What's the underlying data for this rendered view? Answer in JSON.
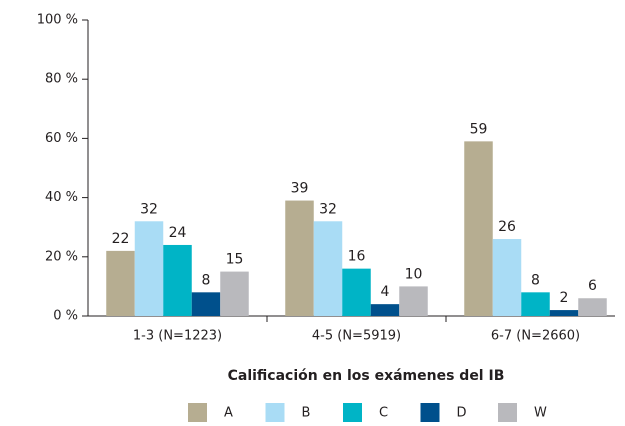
{
  "chart_data": {
    "type": "bar",
    "x_label": "Calificación en los exámenes del IB",
    "categories": [
      "1-3 (N=1223)",
      "4-5 (N=5919)",
      "6-7 (N=2660)"
    ],
    "series": [
      {
        "name": "A",
        "color": "#b6ad91",
        "values": [
          22,
          39,
          59
        ]
      },
      {
        "name": "B",
        "color": "#a9dcf5",
        "values": [
          32,
          32,
          26
        ]
      },
      {
        "name": "C",
        "color": "#00b4c6",
        "values": [
          24,
          16,
          8
        ]
      },
      {
        "name": "D",
        "color": "#00508c",
        "values": [
          8,
          4,
          2
        ]
      },
      {
        "name": "W",
        "color": "#b9b9bd",
        "values": [
          15,
          10,
          6
        ]
      }
    ],
    "ylim": [
      0,
      100
    ],
    "yticks": [
      {
        "value": 0,
        "label": "0 %"
      },
      {
        "value": 20,
        "label": "20 %"
      },
      {
        "value": 40,
        "label": "40 %"
      },
      {
        "value": 60,
        "label": "60 %"
      },
      {
        "value": 80,
        "label": "80 %"
      },
      {
        "value": 100,
        "label": "100 %"
      }
    ],
    "legend": "bottom"
  }
}
